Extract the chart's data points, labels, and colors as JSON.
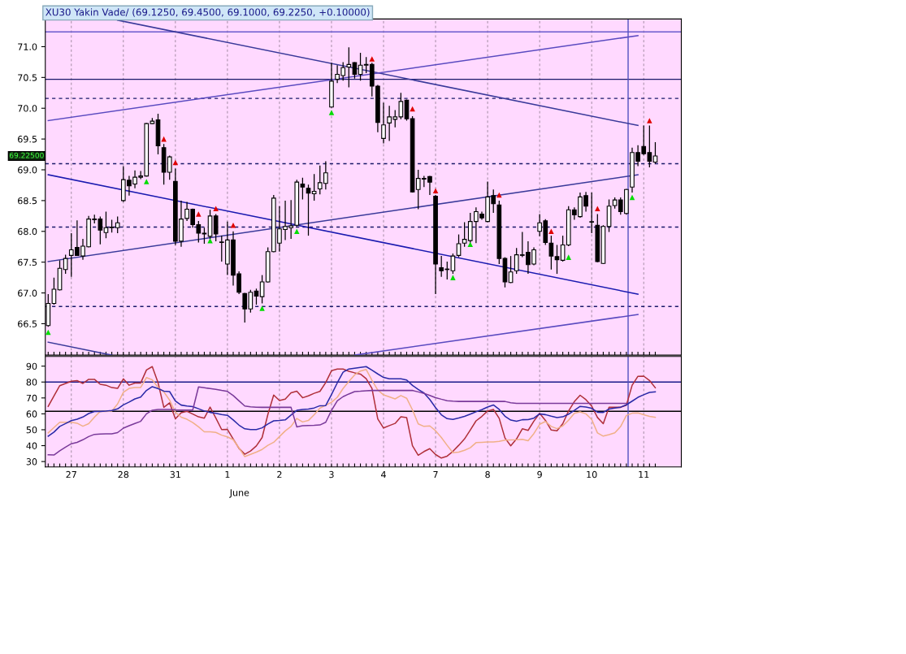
{
  "chart_data": [
    {
      "type": "candlestick",
      "title": "XU30 Yakin Vade/ (69.1250, 69.4500, 69.1000, 69.2250, +0.10000)",
      "categories": [
        null,
        null,
        null,
        null,
        "27",
        null,
        null,
        null,
        null,
        null,
        null,
        null,
        null,
        "28",
        null,
        null,
        null,
        null,
        null,
        null,
        null,
        null,
        "31",
        null,
        null,
        null,
        null,
        null,
        null,
        null,
        null,
        "1",
        null,
        null,
        null,
        null,
        null,
        null,
        null,
        null,
        "2",
        null,
        null,
        null,
        null,
        null,
        null,
        null,
        null,
        "3",
        null,
        null,
        null,
        null,
        null,
        null,
        null,
        null,
        "4",
        null,
        null,
        null,
        null,
        null,
        null,
        null,
        null,
        "7",
        null,
        null,
        null,
        null,
        null,
        null,
        null,
        null,
        "8",
        null,
        null,
        null,
        null,
        null,
        null,
        null,
        null,
        "9",
        null,
        null,
        null,
        null,
        null,
        null,
        null,
        null,
        "10",
        null,
        null,
        null,
        null,
        null,
        null,
        null,
        null,
        "11",
        null,
        null
      ],
      "ohlc": [
        [
          66.47,
          66.98,
          66.45,
          66.83
        ],
        [
          66.83,
          67.25,
          66.81,
          67.06
        ],
        [
          67.05,
          67.53,
          67.04,
          67.4
        ],
        [
          67.38,
          67.62,
          67.31,
          67.56
        ],
        [
          67.61,
          67.97,
          67.26,
          67.7
        ],
        [
          67.74,
          68.18,
          67.6,
          67.61
        ],
        [
          67.6,
          67.88,
          67.54,
          67.76
        ],
        [
          67.75,
          68.25,
          67.74,
          68.2
        ],
        [
          68.19,
          68.27,
          68.13,
          68.2
        ],
        [
          68.2,
          68.24,
          67.79,
          68.02
        ],
        [
          67.98,
          68.32,
          67.89,
          68.06
        ],
        [
          68.06,
          68.19,
          67.98,
          68.07
        ],
        [
          68.06,
          68.24,
          67.97,
          68.14
        ],
        [
          68.5,
          69.06,
          68.48,
          68.84
        ],
        [
          68.83,
          68.9,
          68.58,
          68.74
        ],
        [
          68.77,
          68.99,
          68.7,
          68.88
        ],
        [
          68.88,
          68.98,
          68.85,
          68.9
        ],
        [
          68.9,
          69.76,
          68.89,
          69.75
        ],
        [
          69.75,
          69.84,
          69.74,
          69.79
        ],
        [
          69.81,
          69.91,
          69.25,
          69.39
        ],
        [
          69.36,
          69.42,
          68.76,
          68.96
        ],
        [
          68.96,
          69.23,
          68.84,
          69.21
        ],
        [
          68.81,
          69.02,
          67.78,
          67.84
        ],
        [
          67.84,
          68.5,
          67.75,
          68.2
        ],
        [
          68.21,
          68.48,
          68.17,
          68.36
        ],
        [
          68.36,
          68.37,
          68.06,
          68.11
        ],
        [
          68.11,
          68.17,
          67.82,
          67.97
        ],
        [
          67.97,
          68.06,
          67.8,
          67.96
        ],
        [
          67.92,
          68.35,
          67.88,
          68.25
        ],
        [
          68.25,
          68.28,
          67.84,
          67.96
        ],
        [
          67.82,
          67.93,
          67.51,
          67.82
        ],
        [
          67.47,
          68.16,
          67.29,
          67.86
        ],
        [
          67.86,
          68.0,
          67.12,
          67.29
        ],
        [
          67.31,
          67.35,
          66.98,
          67.01
        ],
        [
          66.99,
          67.0,
          66.52,
          66.74
        ],
        [
          66.74,
          67.05,
          66.68,
          67.01
        ],
        [
          67.03,
          67.07,
          66.81,
          66.95
        ],
        [
          66.94,
          67.29,
          66.83,
          67.18
        ],
        [
          67.18,
          67.74,
          67.17,
          67.67
        ],
        [
          67.67,
          68.59,
          67.66,
          68.54
        ],
        [
          67.81,
          68.41,
          67.67,
          68.04
        ],
        [
          68.03,
          68.5,
          67.86,
          68.08
        ],
        [
          68.06,
          68.51,
          67.88,
          68.09
        ],
        [
          68.1,
          68.84,
          68.08,
          68.8
        ],
        [
          68.77,
          68.87,
          68.52,
          68.72
        ],
        [
          68.7,
          68.76,
          67.93,
          68.62
        ],
        [
          68.61,
          68.93,
          68.5,
          68.65
        ],
        [
          68.69,
          69.07,
          68.6,
          68.79
        ],
        [
          68.78,
          69.14,
          68.68,
          68.95
        ],
        [
          70.02,
          70.74,
          70.01,
          70.44
        ],
        [
          70.47,
          70.7,
          70.41,
          70.55
        ],
        [
          70.53,
          70.75,
          70.45,
          70.66
        ],
        [
          70.67,
          70.99,
          70.34,
          70.71
        ],
        [
          70.74,
          70.75,
          70.48,
          70.55
        ],
        [
          70.55,
          70.9,
          70.45,
          70.7
        ],
        [
          70.7,
          70.83,
          70.57,
          70.71
        ],
        [
          70.71,
          70.74,
          70.19,
          70.36
        ],
        [
          70.36,
          70.38,
          69.61,
          69.77
        ],
        [
          69.51,
          70.09,
          69.43,
          69.73
        ],
        [
          69.76,
          70.04,
          69.47,
          69.86
        ],
        [
          69.82,
          69.97,
          69.69,
          69.86
        ],
        [
          69.86,
          70.25,
          69.82,
          70.11
        ],
        [
          70.13,
          70.14,
          69.8,
          69.83
        ],
        [
          69.83,
          69.87,
          68.63,
          68.64
        ],
        [
          68.68,
          69.0,
          68.36,
          68.86
        ],
        [
          68.86,
          68.9,
          68.72,
          68.85
        ],
        [
          68.89,
          68.9,
          68.59,
          68.8
        ],
        [
          68.57,
          68.59,
          66.98,
          67.47
        ],
        [
          67.41,
          67.6,
          67.26,
          67.36
        ],
        [
          67.38,
          67.51,
          67.22,
          67.38
        ],
        [
          67.36,
          67.64,
          67.31,
          67.6
        ],
        [
          67.61,
          67.95,
          67.58,
          67.8
        ],
        [
          67.81,
          68.15,
          67.75,
          67.87
        ],
        [
          67.85,
          68.3,
          67.82,
          68.16
        ],
        [
          68.16,
          68.39,
          67.81,
          68.32
        ],
        [
          68.28,
          68.32,
          68.19,
          68.22
        ],
        [
          68.16,
          68.81,
          68.15,
          68.56
        ],
        [
          68.58,
          68.68,
          68.3,
          68.45
        ],
        [
          68.43,
          68.5,
          67.47,
          67.56
        ],
        [
          67.56,
          67.58,
          67.09,
          67.18
        ],
        [
          67.17,
          67.6,
          67.16,
          67.34
        ],
        [
          67.36,
          67.73,
          67.31,
          67.62
        ],
        [
          67.61,
          67.99,
          67.58,
          67.62
        ],
        [
          67.66,
          67.84,
          67.31,
          67.46
        ],
        [
          67.47,
          67.74,
          67.45,
          67.7
        ],
        [
          68.0,
          68.28,
          67.92,
          68.14
        ],
        [
          68.17,
          68.2,
          67.78,
          67.82
        ],
        [
          67.81,
          67.93,
          67.38,
          67.6
        ],
        [
          67.59,
          67.78,
          67.31,
          67.54
        ],
        [
          67.53,
          67.93,
          67.51,
          67.78
        ],
        [
          67.78,
          68.41,
          67.76,
          68.35
        ],
        [
          68.35,
          68.39,
          68.19,
          68.27
        ],
        [
          68.24,
          68.63,
          68.22,
          68.56
        ],
        [
          68.58,
          68.64,
          68.32,
          68.41
        ],
        [
          68.15,
          68.63,
          67.97,
          68.15
        ],
        [
          68.1,
          68.28,
          67.5,
          67.51
        ],
        [
          67.48,
          68.1,
          67.47,
          68.08
        ],
        [
          68.08,
          68.52,
          67.99,
          68.41
        ],
        [
          68.42,
          68.55,
          68.37,
          68.51
        ],
        [
          68.51,
          68.55,
          68.27,
          68.32
        ],
        [
          68.29,
          68.69,
          68.27,
          68.68
        ],
        [
          68.72,
          69.36,
          68.63,
          69.28
        ],
        [
          69.28,
          69.4,
          69.06,
          69.14
        ],
        [
          69.38,
          69.72,
          69.24,
          69.26
        ],
        [
          69.28,
          69.72,
          69.04,
          69.14
        ],
        [
          69.125,
          69.45,
          69.1,
          69.225
        ]
      ],
      "series": [
        {
          "type": "line",
          "color": "#3a3a9a",
          "values": [
            null,
            null,
            null,
            null,
            null,
            null,
            null,
            null,
            null,
            null,
            null,
            null,
            71.43,
            null,
            null,
            null,
            null,
            null,
            null,
            null,
            null,
            null,
            null,
            null,
            null,
            null,
            null,
            null,
            null,
            null,
            null,
            null,
            null,
            null,
            null,
            null,
            null,
            null,
            null,
            null,
            null,
            null,
            null,
            null,
            null,
            null,
            null,
            null,
            null,
            null,
            null,
            null,
            null,
            null,
            null,
            null,
            null,
            null,
            null,
            null,
            null,
            null,
            null,
            null,
            null,
            null,
            null,
            null,
            null,
            null,
            null,
            null,
            null,
            null,
            null,
            null,
            null,
            null,
            null,
            null,
            null,
            null,
            null,
            null,
            null,
            null,
            null,
            null,
            null,
            null,
            null,
            null,
            null,
            null,
            null,
            null,
            null,
            null,
            null,
            null,
            null,
            null,
            69.72,
            null,
            null,
            null
          ]
        },
        {
          "type": "line",
          "color": "#5a4ac0",
          "values": [
            69.8,
            null,
            null,
            null,
            null,
            null,
            null,
            null,
            null,
            null,
            null,
            null,
            null,
            null,
            null,
            null,
            null,
            null,
            null,
            null,
            null,
            null,
            null,
            null,
            null,
            null,
            null,
            null,
            null,
            null,
            null,
            null,
            null,
            null,
            null,
            null,
            null,
            null,
            null,
            null,
            null,
            null,
            null,
            null,
            null,
            null,
            null,
            null,
            null,
            null,
            null,
            null,
            null,
            null,
            null,
            null,
            null,
            null,
            null,
            null,
            null,
            null,
            null,
            null,
            null,
            null,
            null,
            null,
            null,
            null,
            null,
            null,
            null,
            null,
            null,
            null,
            null,
            null,
            null,
            null,
            null,
            null,
            null,
            null,
            null,
            null,
            null,
            null,
            null,
            null,
            null,
            null,
            null,
            null,
            null,
            null,
            null,
            null,
            null,
            null,
            null,
            null,
            71.18,
            null,
            null,
            null
          ]
        },
        {
          "type": "line",
          "color": "#1a1ab0",
          "values": [
            68.92,
            null,
            null,
            null,
            null,
            null,
            null,
            null,
            null,
            null,
            null,
            null,
            null,
            null,
            null,
            null,
            null,
            null,
            null,
            null,
            null,
            null,
            null,
            null,
            null,
            null,
            null,
            null,
            null,
            null,
            null,
            null,
            null,
            null,
            null,
            null,
            null,
            null,
            null,
            null,
            null,
            null,
            null,
            null,
            null,
            null,
            null,
            null,
            null,
            null,
            null,
            null,
            null,
            null,
            null,
            null,
            null,
            null,
            null,
            null,
            null,
            null,
            null,
            null,
            null,
            null,
            null,
            null,
            null,
            null,
            null,
            null,
            null,
            null,
            null,
            null,
            null,
            null,
            null,
            null,
            null,
            null,
            null,
            null,
            null,
            null,
            null,
            null,
            null,
            null,
            null,
            null,
            null,
            null,
            null,
            null,
            null,
            null,
            null,
            null,
            null,
            null,
            66.98,
            null,
            null,
            null
          ]
        },
        {
          "type": "line",
          "color": "#3a3a9a",
          "values": [
            67.51,
            null,
            null,
            null,
            null,
            null,
            null,
            null,
            null,
            null,
            null,
            null,
            null,
            null,
            null,
            null,
            null,
            null,
            null,
            null,
            null,
            null,
            null,
            null,
            null,
            null,
            null,
            null,
            null,
            null,
            null,
            null,
            null,
            null,
            null,
            null,
            null,
            null,
            null,
            null,
            null,
            null,
            null,
            null,
            null,
            null,
            null,
            null,
            null,
            null,
            null,
            null,
            null,
            null,
            null,
            null,
            null,
            null,
            null,
            null,
            null,
            null,
            null,
            null,
            null,
            null,
            null,
            null,
            null,
            null,
            null,
            null,
            null,
            null,
            null,
            null,
            null,
            null,
            null,
            null,
            null,
            null,
            null,
            null,
            null,
            null,
            null,
            null,
            null,
            null,
            null,
            null,
            null,
            null,
            null,
            null,
            null,
            null,
            null,
            null,
            null,
            null,
            68.92,
            null,
            null,
            null
          ]
        },
        {
          "type": "line",
          "color": "#3a3a9a",
          "values": [
            66.2,
            null,
            null,
            null,
            null,
            null,
            null,
            null,
            null,
            null,
            null,
            65.99,
            null,
            null,
            null,
            null,
            null,
            null,
            null,
            null,
            null,
            null,
            null,
            null,
            null,
            null,
            null,
            null,
            null,
            null,
            null,
            null,
            null,
            null,
            null,
            null,
            null,
            null,
            null,
            null,
            null,
            null,
            null,
            null,
            null,
            null,
            null,
            null,
            null,
            null,
            null,
            null,
            null,
            null,
            null,
            null,
            null,
            null,
            null,
            null,
            null,
            null,
            null,
            null,
            null,
            null,
            null,
            null,
            null,
            null,
            null,
            null,
            null,
            null,
            null,
            null,
            null,
            null,
            null,
            null,
            null,
            null,
            null,
            null,
            null,
            null,
            null,
            null,
            null,
            null,
            null,
            null,
            null,
            null,
            null,
            null,
            null,
            null,
            null,
            null,
            null,
            null,
            null,
            null,
            null,
            null
          ]
        },
        {
          "type": "line",
          "color": "#5a4ac0",
          "values": [
            null,
            null,
            null,
            null,
            null,
            null,
            null,
            null,
            null,
            null,
            null,
            null,
            null,
            null,
            null,
            null,
            null,
            null,
            null,
            null,
            null,
            null,
            null,
            null,
            null,
            null,
            null,
            null,
            null,
            null,
            null,
            null,
            null,
            null,
            null,
            null,
            null,
            null,
            null,
            null,
            null,
            null,
            null,
            null,
            null,
            null,
            null,
            null,
            null,
            null,
            null,
            null,
            null,
            65.99,
            null,
            null,
            null,
            null,
            null,
            null,
            null,
            null,
            null,
            null,
            null,
            null,
            null,
            null,
            null,
            null,
            null,
            null,
            null,
            null,
            null,
            null,
            null,
            null,
            null,
            null,
            null,
            null,
            null,
            null,
            null,
            null,
            null,
            null,
            null,
            null,
            null,
            null,
            null,
            null,
            null,
            null,
            null,
            null,
            null,
            null,
            null,
            null,
            66.65,
            null,
            null,
            null
          ]
        },
        {
          "type": "scatter",
          "marker": "triangle",
          "color": "#00dd00",
          "values": [
            66.36,
            null,
            null,
            null,
            null,
            null,
            null,
            null,
            null,
            null,
            null,
            null,
            null,
            null,
            null,
            null,
            null,
            68.81,
            null,
            null,
            null,
            null,
            null,
            null,
            null,
            null,
            null,
            null,
            67.85,
            null,
            null,
            null,
            null,
            null,
            null,
            null,
            null,
            66.75,
            null,
            null,
            null,
            null,
            null,
            68.0,
            null,
            null,
            null,
            null,
            null,
            69.93,
            null,
            null,
            null,
            null,
            null,
            null,
            null,
            null,
            null,
            null,
            null,
            null,
            null,
            null,
            null,
            null,
            null,
            null,
            null,
            null,
            67.25,
            null,
            null,
            67.79,
            null,
            null,
            null,
            null,
            null,
            null,
            null,
            null,
            null,
            null,
            null,
            null,
            null,
            null,
            null,
            null,
            67.58,
            null,
            null,
            null,
            null,
            null,
            null,
            null,
            null,
            null,
            null,
            68.55,
            null,
            null,
            null,
            null
          ]
        },
        {
          "type": "scatter",
          "marker": "triangle",
          "color": "#e00000",
          "values": [
            null,
            null,
            null,
            null,
            null,
            null,
            null,
            null,
            null,
            null,
            null,
            null,
            null,
            null,
            null,
            null,
            null,
            null,
            null,
            null,
            69.5,
            null,
            69.12,
            null,
            null,
            null,
            68.28,
            null,
            null,
            68.37,
            null,
            null,
            68.1,
            null,
            null,
            null,
            null,
            null,
            null,
            null,
            null,
            null,
            null,
            null,
            null,
            null,
            null,
            null,
            null,
            null,
            null,
            null,
            null,
            null,
            null,
            null,
            70.8,
            null,
            null,
            null,
            null,
            null,
            null,
            69.99,
            null,
            null,
            null,
            68.66,
            null,
            null,
            null,
            null,
            null,
            null,
            null,
            null,
            null,
            null,
            68.59,
            null,
            null,
            null,
            null,
            null,
            null,
            null,
            null,
            68.0,
            null,
            null,
            null,
            null,
            null,
            null,
            null,
            68.37,
            null,
            null,
            null,
            null,
            null,
            null,
            null,
            null,
            69.8,
            null
          ]
        }
      ],
      "ylim": [
        65.99,
        71.45
      ],
      "yticks": [
        {
          "value": 66.5,
          "label": "66.5"
        },
        {
          "value": 67,
          "label": "67.0"
        },
        {
          "value": 67.5,
          "label": "67.5"
        },
        {
          "value": 68,
          "label": "68.0"
        },
        {
          "value": 68.5,
          "label": "68.5"
        },
        {
          "value": 69,
          "label": "69.0"
        },
        {
          "value": 69.5,
          "label": "69.5"
        },
        {
          "value": 70,
          "label": "70.0"
        },
        {
          "value": 70.5,
          "label": "70.5"
        },
        {
          "value": 71,
          "label": "71.0"
        }
      ],
      "tick_labels": "y",
      "grid": "x",
      "ref_lines": [
        {
          "axis": "y",
          "value": 71.24,
          "color": "#6a5acd",
          "line_style": "solid"
        },
        {
          "axis": "y",
          "value": 70.47,
          "color": "#1a1a6a",
          "line_style": "solid"
        },
        {
          "axis": "y",
          "value": 70.16,
          "color": "#1a1a6a",
          "line_style": "dashed"
        },
        {
          "axis": "y",
          "value": 69.1,
          "color": "#1a1a6a",
          "line_style": "dashed"
        },
        {
          "axis": "y",
          "value": 68.07,
          "color": "#1a1a6a",
          "line_style": "dashed"
        },
        {
          "axis": "y",
          "value": 66.78,
          "color": "#1a1a6a",
          "line_style": "dashed"
        }
      ],
      "annotations": [
        "69.22500"
      ]
    },
    {
      "type": "line",
      "categories": [
        null,
        null,
        null,
        null,
        "27",
        null,
        null,
        null,
        null,
        null,
        null,
        null,
        null,
        "28",
        null,
        null,
        null,
        null,
        null,
        null,
        null,
        null,
        "31",
        null,
        null,
        null,
        null,
        null,
        null,
        null,
        null,
        "1",
        null,
        null,
        null,
        null,
        null,
        null,
        null,
        null,
        "2",
        null,
        null,
        null,
        null,
        null,
        null,
        null,
        null,
        "3",
        null,
        null,
        null,
        null,
        null,
        null,
        null,
        null,
        "4",
        null,
        null,
        null,
        null,
        null,
        null,
        null,
        null,
        "7",
        null,
        null,
        null,
        null,
        null,
        null,
        null,
        null,
        "8",
        null,
        null,
        null,
        null,
        null,
        null,
        null,
        null,
        "9",
        null,
        null,
        null,
        null,
        null,
        null,
        null,
        null,
        "10",
        null,
        null,
        null,
        null,
        null,
        null,
        null,
        null,
        "11",
        null,
        null
      ],
      "series": [
        {
          "color": "#b0303a",
          "values": [
            64.7,
            71.2,
            77.7,
            79.1,
            80.5,
            80.9,
            79.1,
            81.7,
            81.7,
            78.6,
            78.0,
            76.5,
            76.0,
            82.0,
            78.0,
            79.4,
            79.4,
            87.6,
            89.7,
            79.6,
            64.1,
            66.9,
            56.9,
            60.7,
            61.6,
            59.9,
            58.1,
            57.3,
            64.2,
            57.3,
            50.1,
            50.2,
            44.2,
            38.3,
            34.6,
            36.6,
            39.8,
            45.1,
            59.7,
            71.8,
            68.4,
            69.3,
            73.2,
            74.3,
            70.1,
            71.3,
            72.9,
            74.1,
            79.7,
            87.1,
            88.2,
            88.2,
            86.8,
            85.8,
            85.0,
            82.1,
            76.0,
            56.8,
            51.1,
            52.6,
            54.0,
            58.1,
            57.6,
            40.0,
            34.0,
            36.3,
            38.1,
            34.4,
            32.2,
            33.4,
            36.4,
            40.2,
            44.2,
            49.8,
            55.6,
            58.4,
            61.8,
            62.8,
            57.2,
            44.8,
            39.9,
            44.2,
            50.6,
            49.6,
            55.4,
            60.3,
            55.9,
            49.8,
            49.3,
            53.8,
            61.8,
            67.7,
            71.7,
            68.9,
            64.9,
            57.7,
            53.8,
            64.1,
            64.1,
            64.1,
            65.4,
            78.0,
            83.6,
            83.7,
            81.0,
            76.4
          ]
        },
        {
          "color": "#f0b088",
          "values": [
            48.0,
            51.4,
            54.7,
            54.7,
            54.7,
            54.1,
            52.2,
            53.8,
            57.9,
            61.5,
            61.5,
            61.7,
            66.2,
            73.5,
            76.0,
            76.6,
            76.6,
            82.8,
            81.4,
            76.6,
            73.8,
            68.6,
            61.1,
            57.9,
            56.6,
            54.5,
            51.8,
            48.7,
            48.7,
            48.3,
            46.6,
            45.5,
            43.7,
            38.6,
            33.1,
            34.5,
            35.9,
            37.6,
            40.2,
            42.1,
            45.7,
            49.3,
            52.1,
            57.1,
            54.9,
            55.8,
            59.4,
            63.6,
            65.4,
            67.3,
            70.4,
            75.9,
            80.4,
            84.5,
            86.9,
            87.9,
            81.1,
            75.0,
            71.9,
            70.7,
            69.4,
            71.5,
            69.8,
            62.5,
            53.7,
            52.1,
            52.4,
            49.4,
            45.1,
            40.2,
            35.6,
            35.9,
            37.1,
            38.7,
            41.9,
            42.1,
            42.3,
            42.3,
            42.7,
            43.5,
            43.6,
            43.7,
            44.0,
            43.1,
            47.6,
            53.4,
            55.2,
            52.1,
            50.7,
            52.4,
            56.0,
            60.3,
            61.2,
            60.0,
            56.5,
            48.0,
            46.0,
            46.9,
            48.1,
            52.0,
            59.0,
            60.4,
            60.6,
            59.4,
            58.4,
            57.8
          ]
        },
        {
          "color": "#2a2aa8",
          "values": [
            45.9,
            48.5,
            52.1,
            53.9,
            55.7,
            56.6,
            58.0,
            60.2,
            61.5,
            61.5,
            61.7,
            62.1,
            63.1,
            65.6,
            67.4,
            69.4,
            70.5,
            74.7,
            77.1,
            75.9,
            74.3,
            74.0,
            68.1,
            65.5,
            64.9,
            64.5,
            63.2,
            61.8,
            60.9,
            60.3,
            59.6,
            59.1,
            56.2,
            52.9,
            50.6,
            50.1,
            50.1,
            51.2,
            53.6,
            55.6,
            55.8,
            56.2,
            59.2,
            62.2,
            62.7,
            63.0,
            63.7,
            65.1,
            65.2,
            72.1,
            79.5,
            86.2,
            88.2,
            88.7,
            89.2,
            89.7,
            87.5,
            85.1,
            82.9,
            82.0,
            82.0,
            82.0,
            81.3,
            77.9,
            75.3,
            73.1,
            69.0,
            63.9,
            59.4,
            57.0,
            56.5,
            57.4,
            58.4,
            59.8,
            61.3,
            62.6,
            64.3,
            65.6,
            62.8,
            58.5,
            56.1,
            55.4,
            56.3,
            56.4,
            57.3,
            60.0,
            59.5,
            58.5,
            57.7,
            58.1,
            59.8,
            62.2,
            64.7,
            64.3,
            63.5,
            61.0,
            60.9,
            63.0,
            63.7,
            64.2,
            65.7,
            68.0,
            70.4,
            72.0,
            73.5,
            73.8
          ]
        },
        {
          "color": "#7a3a9a",
          "values": [
            34.3,
            34.1,
            36.8,
            39.1,
            41.2,
            42.1,
            43.7,
            45.7,
            47.1,
            47.3,
            47.4,
            47.4,
            48.2,
            51.0,
            52.5,
            53.9,
            55.3,
            60.0,
            62.3,
            62.7,
            62.7,
            62.7,
            62.5,
            62.4,
            62.4,
            62.4,
            76.9,
            76.4,
            75.9,
            75.4,
            74.7,
            74.1,
            71.5,
            68.2,
            64.9,
            64.4,
            64.2,
            64.1,
            64.1,
            64.1,
            64.1,
            64.1,
            64.1,
            51.8,
            52.5,
            52.7,
            52.8,
            53.0,
            54.7,
            62.2,
            68.2,
            70.8,
            72.5,
            74.0,
            74.2,
            74.5,
            74.7,
            74.7,
            74.7,
            74.7,
            74.7,
            74.7,
            74.7,
            74.7,
            73.8,
            72.9,
            71.6,
            70.2,
            69.2,
            68.3,
            68.0,
            67.8,
            67.8,
            67.8,
            67.8,
            67.8,
            67.8,
            67.8,
            67.8,
            67.8,
            67.0,
            66.6,
            66.6,
            66.6,
            66.6,
            66.6,
            66.6,
            66.6,
            66.6,
            66.6,
            66.6,
            66.6,
            66.6,
            66.6,
            66.6,
            66.6,
            66.6,
            66.6,
            66.6,
            66.6,
            66.6,
            null,
            null,
            null,
            null,
            null
          ]
        }
      ],
      "ylim": [
        26.6,
        96.1
      ],
      "yticks": [
        30,
        40,
        50,
        60,
        70,
        80,
        90
      ],
      "grid": "x",
      "ref_lines": [
        {
          "axis": "y",
          "value": 80,
          "color": "#1a1a8a",
          "line_style": "solid"
        },
        {
          "axis": "y",
          "value": 61.6,
          "color": "#000000",
          "line_style": "solid"
        }
      ],
      "annotations": [
        "June"
      ]
    }
  ]
}
